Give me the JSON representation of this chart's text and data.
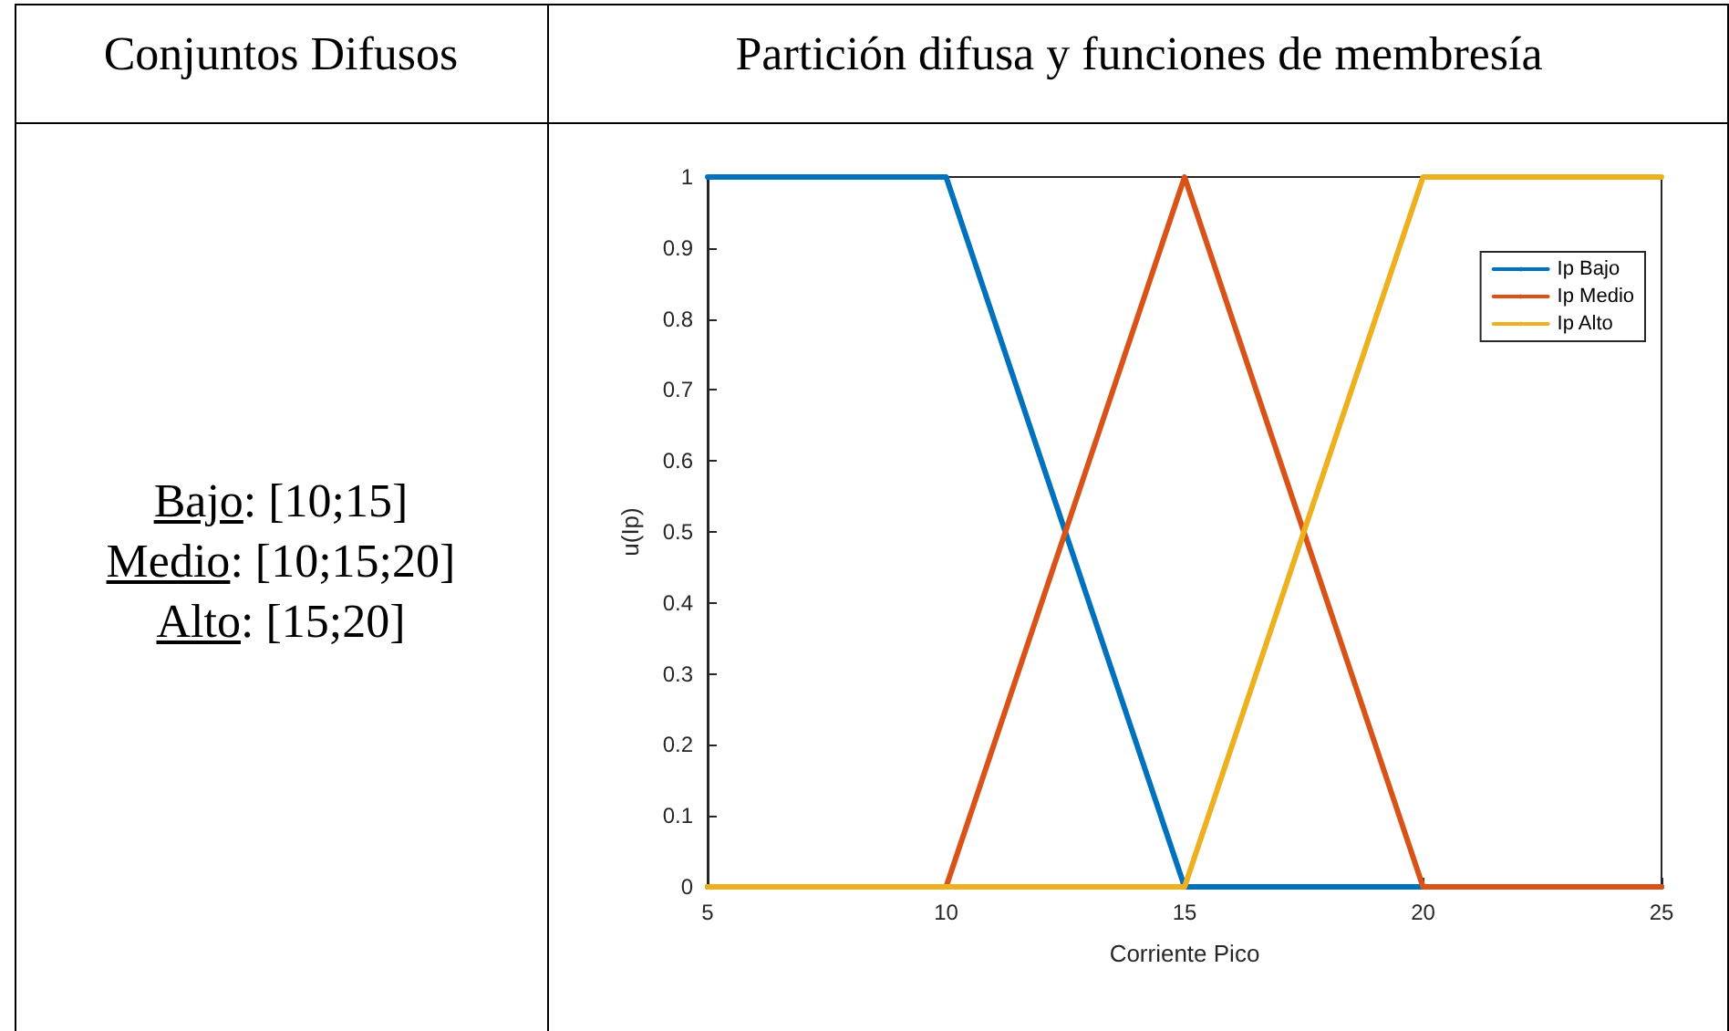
{
  "chart_data": {
    "type": "line",
    "title": "Partición difusa y funciones de membresía",
    "xlabel": "Corriente Pico",
    "ylabel": "u(Ip)",
    "annotations": [
      "Conjuntos Difusos",
      "Bajo: [10;15]",
      "Medio: [10;15;20]",
      "Alto: [15;20]"
    ],
    "series": [
      {
        "name": "Ip Bajo",
        "color": "#0072bd",
        "x": [
          5,
          10,
          15,
          25
        ],
        "values": [
          1,
          1,
          0,
          0
        ]
      },
      {
        "name": "Ip Medio",
        "color": "#d95319",
        "x": [
          5,
          10,
          15,
          20,
          25
        ],
        "values": [
          0,
          0,
          1,
          0,
          0
        ]
      },
      {
        "name": "Ip Alto",
        "color": "#edb120",
        "x": [
          5,
          15,
          20,
          25
        ],
        "values": [
          0,
          0,
          1,
          1
        ]
      }
    ],
    "xlim": [
      5,
      25
    ],
    "xticks": [
      5,
      10,
      15,
      20,
      25
    ],
    "ylim": [
      0,
      1
    ],
    "yticks": [
      0,
      0.1,
      0.2,
      0.3,
      0.4,
      0.5,
      0.6,
      0.7,
      0.8,
      0.9,
      1
    ],
    "grid": false,
    "legend": "top right",
    "marker": "none",
    "line_style": "solid"
  }
}
